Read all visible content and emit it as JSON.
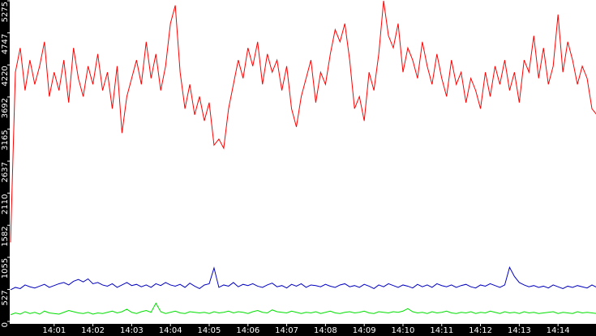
{
  "chart_data": {
    "type": "line",
    "categories": [
      null,
      null,
      null,
      null,
      null,
      null,
      null,
      null,
      null,
      "14:01",
      null,
      null,
      null,
      null,
      null,
      null,
      null,
      "14:02",
      null,
      null,
      null,
      null,
      null,
      null,
      null,
      "14:03",
      null,
      null,
      null,
      null,
      null,
      null,
      null,
      "14:04",
      null,
      null,
      null,
      null,
      null,
      null,
      null,
      "14:05",
      null,
      null,
      null,
      null,
      null,
      null,
      null,
      "14:06",
      null,
      null,
      null,
      null,
      null,
      null,
      null,
      "14:07",
      null,
      null,
      null,
      null,
      null,
      null,
      null,
      "14:08",
      null,
      null,
      null,
      null,
      null,
      null,
      null,
      "14:09",
      null,
      null,
      null,
      null,
      null,
      null,
      null,
      "14:10",
      null,
      null,
      null,
      null,
      null,
      null,
      null,
      "14:11",
      null,
      null,
      null,
      null,
      null,
      null,
      null,
      "14:12",
      null,
      null,
      null,
      null,
      null,
      null,
      null,
      "14:13",
      null,
      null,
      null,
      null,
      null,
      null,
      null,
      "14:14",
      null,
      null,
      null,
      null,
      null,
      null,
      null,
      null
    ],
    "series": [
      {
        "color": "#ff0000",
        "values": [
          1300,
          4100,
          4500,
          3800,
          4300,
          3900,
          4200,
          4600,
          3700,
          4100,
          3800,
          4300,
          3600,
          4500,
          4000,
          3700,
          4200,
          3900,
          4400,
          3800,
          4100,
          3500,
          4200,
          3100,
          3700,
          4000,
          4300,
          3900,
          4600,
          4000,
          4400,
          3800,
          4200,
          4900,
          5200,
          4100,
          3500,
          3900,
          3400,
          3700,
          3300,
          3600,
          2900,
          3000,
          2850,
          3500,
          3900,
          4300,
          4000,
          4500,
          4200,
          4600,
          3900,
          4400,
          4100,
          4300,
          3800,
          4200,
          3500,
          3200,
          3700,
          4000,
          4300,
          3600,
          4100,
          3900,
          4400,
          4800,
          4600,
          4900,
          4300,
          3500,
          3700,
          3300,
          4100,
          3800,
          4400,
          5275,
          4700,
          4500,
          4900,
          4100,
          4500,
          4300,
          4000,
          4600,
          4200,
          3900,
          4400,
          4000,
          3700,
          4300,
          3900,
          4100,
          3600,
          4000,
          3800,
          3500,
          4100,
          3700,
          4200,
          3900,
          4300,
          3800,
          4100,
          3600,
          4300,
          4100,
          4700,
          4000,
          4500,
          3900,
          4200,
          5050,
          4100,
          4600,
          4300,
          3900,
          4200,
          4000,
          3500,
          3400
        ]
      },
      {
        "color": "#0000c0",
        "values": [
          520,
          560,
          540,
          600,
          570,
          550,
          580,
          610,
          560,
          590,
          620,
          640,
          600,
          660,
          690,
          650,
          700,
          620,
          640,
          600,
          580,
          620,
          560,
          600,
          640,
          590,
          610,
          570,
          600,
          560,
          620,
          590,
          640,
          600,
          580,
          610,
          560,
          630,
          580,
          540,
          600,
          620,
          880,
          560,
          600,
          580,
          640,
          570,
          610,
          590,
          620,
          580,
          560,
          600,
          630,
          570,
          590,
          550,
          610,
          580,
          620,
          560,
          600,
          590,
          570,
          610,
          580,
          560,
          600,
          620,
          570,
          590,
          560,
          610,
          580,
          540,
          600,
          570,
          620,
          590,
          560,
          600,
          580,
          550,
          610,
          570,
          600,
          560,
          620,
          590,
          570,
          600,
          560,
          590,
          610,
          570,
          550,
          600,
          580,
          620,
          590,
          560,
          600,
          890,
          740,
          640,
          600,
          570,
          590,
          560,
          580,
          550,
          600,
          570,
          540,
          580,
          560,
          590,
          570,
          550,
          600,
          560
        ]
      },
      {
        "color": "#00e000",
        "values": [
          110,
          140,
          120,
          160,
          130,
          150,
          120,
          170,
          140,
          130,
          120,
          150,
          180,
          160,
          140,
          130,
          150,
          120,
          140,
          130,
          150,
          170,
          140,
          160,
          200,
          150,
          130,
          160,
          180,
          150,
          300,
          160,
          130,
          150,
          170,
          140,
          130,
          160,
          150,
          140,
          150,
          130,
          160,
          140,
          150,
          170,
          140,
          160,
          150,
          130,
          160,
          180,
          150,
          140,
          190,
          160,
          150,
          140,
          170,
          150,
          130,
          150,
          140,
          160,
          130,
          150,
          170,
          140,
          130,
          150,
          160,
          140,
          150,
          170,
          140,
          130,
          160,
          150,
          140,
          160,
          150,
          170,
          210,
          160,
          140,
          150,
          130,
          160,
          140,
          150,
          170,
          140,
          130,
          150,
          140,
          160,
          130,
          150,
          140,
          170,
          150,
          130,
          160,
          140,
          150,
          130,
          160,
          140,
          150,
          130,
          140,
          150,
          160,
          130,
          150,
          140,
          130,
          160,
          140,
          150,
          140,
          130
        ]
      }
    ],
    "ylim": [
      0,
      5275
    ],
    "yticks": [
      0,
      527,
      1055,
      1582,
      2110,
      2637,
      3165,
      3692,
      4220,
      4747,
      5275
    ]
  }
}
